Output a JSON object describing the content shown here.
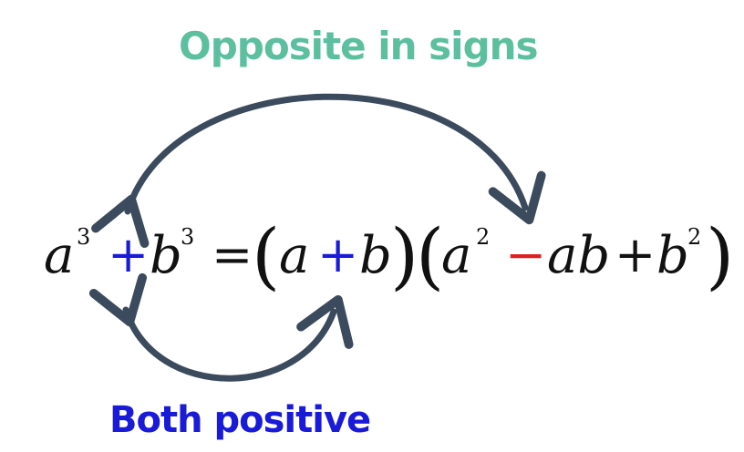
{
  "labels": {
    "top": "Opposite in signs",
    "bottom": "Both positive"
  },
  "equation": {
    "a": "a",
    "b": "b",
    "ab": "ab",
    "exp3": "3",
    "exp2": "2",
    "plus": "+",
    "minus": "−",
    "equals": "=",
    "lparen": "(",
    "rparen": ")"
  },
  "colors": {
    "top_label": "#5cbf9e",
    "bottom_label": "#1a1ad9",
    "plus_highlight": "#1a1ad9",
    "minus_highlight": "#e02020",
    "arrow": "#3b4a5c"
  }
}
